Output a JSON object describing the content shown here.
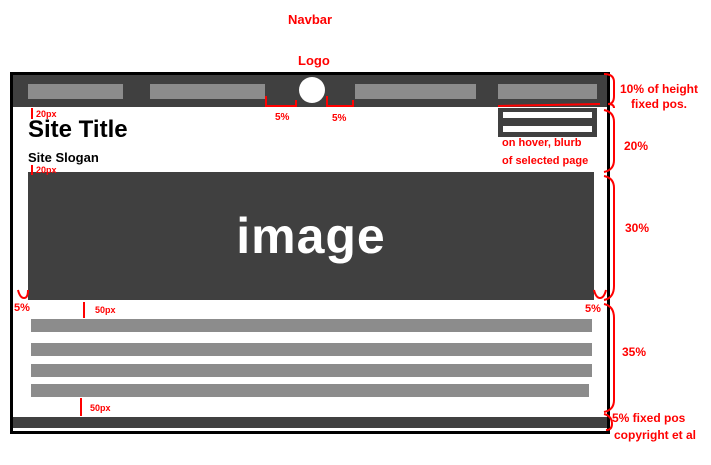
{
  "labels": {
    "navbar": "Navbar",
    "logo": "Logo",
    "nav_height": "10% of height",
    "nav_fixed": "fixed pos.",
    "header_pct": "20%",
    "image_pct": "30%",
    "content_pct": "35%",
    "footer_pct": "5% fixed pos",
    "footer_desc": "copyright et al",
    "logo_gap_left": "5%",
    "logo_gap_right": "5%",
    "title_margin": "20px",
    "slogan_margin": "20px",
    "image_margin_left": "5%",
    "image_margin_right": "5%",
    "content_top_margin": "50px",
    "content_bottom_margin": "50px",
    "hover_line1": "on hover, blurb",
    "hover_line2": "of selected page"
  },
  "site": {
    "title": "Site Title",
    "slogan": "Site Slogan"
  },
  "image": {
    "label": "image"
  },
  "colors": {
    "annotation": "#ff0000",
    "dark": "#404040",
    "placeholder": "#8c8c8c"
  }
}
